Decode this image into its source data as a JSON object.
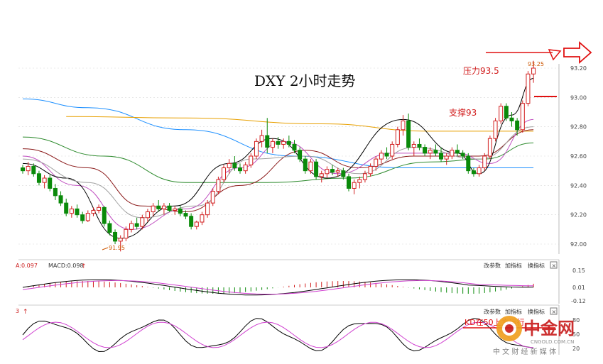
{
  "chart_data": {
    "type": "candlestick",
    "title": "DXY 2小时走势",
    "yaxis": {
      "ticks": [
        "93.20",
        "93.00",
        "92.80",
        "92.60",
        "92.40",
        "92.20",
        "92.00"
      ],
      "range": [
        91.92,
        93.3
      ]
    },
    "candles": [
      [
        92.52,
        92.54,
        92.48,
        92.5
      ],
      [
        92.5,
        92.56,
        92.47,
        92.53
      ],
      [
        92.53,
        92.55,
        92.46,
        92.48
      ],
      [
        92.48,
        92.5,
        92.4,
        92.42
      ],
      [
        92.42,
        92.47,
        92.38,
        92.45
      ],
      [
        92.45,
        92.47,
        92.36,
        92.38
      ],
      [
        92.38,
        92.41,
        92.3,
        92.33
      ],
      [
        92.33,
        92.36,
        92.26,
        92.28
      ],
      [
        92.28,
        92.31,
        92.19,
        92.21
      ],
      [
        92.21,
        92.26,
        92.18,
        92.24
      ],
      [
        92.24,
        92.27,
        92.18,
        92.2
      ],
      [
        92.2,
        92.22,
        92.14,
        92.16
      ],
      [
        92.16,
        92.23,
        92.15,
        92.21
      ],
      [
        92.21,
        92.25,
        92.19,
        92.23
      ],
      [
        92.23,
        92.27,
        92.21,
        92.25
      ],
      [
        92.25,
        92.26,
        92.12,
        92.14
      ],
      [
        92.14,
        92.16,
        92.06,
        92.08
      ],
      [
        92.08,
        92.1,
        92.0,
        92.02
      ],
      [
        92.02,
        92.06,
        91.95,
        92.04
      ],
      [
        92.04,
        92.12,
        92.02,
        92.1
      ],
      [
        92.1,
        92.16,
        92.08,
        92.14
      ],
      [
        92.14,
        92.18,
        92.1,
        92.12
      ],
      [
        92.12,
        92.2,
        92.1,
        92.18
      ],
      [
        92.18,
        92.24,
        92.15,
        92.22
      ],
      [
        92.22,
        92.28,
        92.19,
        92.26
      ],
      [
        92.26,
        92.3,
        92.22,
        92.24
      ],
      [
        92.24,
        92.28,
        92.2,
        92.26
      ],
      [
        92.26,
        92.28,
        92.22,
        92.23
      ],
      [
        92.23,
        92.26,
        92.2,
        92.24
      ],
      [
        92.24,
        92.26,
        92.19,
        92.21
      ],
      [
        92.21,
        92.23,
        92.17,
        92.19
      ],
      [
        92.19,
        92.21,
        92.1,
        92.12
      ],
      [
        92.12,
        92.16,
        92.1,
        92.15
      ],
      [
        92.15,
        92.22,
        92.13,
        92.2
      ],
      [
        92.2,
        92.3,
        92.18,
        92.28
      ],
      [
        92.28,
        92.38,
        92.26,
        92.36
      ],
      [
        92.36,
        92.46,
        92.34,
        92.44
      ],
      [
        92.44,
        92.54,
        92.42,
        92.52
      ],
      [
        92.52,
        92.58,
        92.48,
        92.55
      ],
      [
        92.55,
        92.6,
        92.5,
        92.52
      ],
      [
        92.52,
        92.55,
        92.48,
        92.5
      ],
      [
        92.5,
        92.56,
        92.48,
        92.54
      ],
      [
        92.54,
        92.62,
        92.52,
        92.6
      ],
      [
        92.6,
        92.72,
        92.58,
        92.7
      ],
      [
        92.7,
        92.78,
        92.66,
        92.74
      ],
      [
        92.74,
        92.86,
        92.62,
        92.66
      ],
      [
        92.66,
        92.72,
        92.62,
        92.7
      ],
      [
        92.7,
        92.73,
        92.65,
        92.68
      ],
      [
        92.68,
        92.72,
        92.65,
        92.7
      ],
      [
        92.7,
        92.74,
        92.66,
        92.68
      ],
      [
        92.68,
        92.71,
        92.62,
        92.64
      ],
      [
        92.64,
        92.66,
        92.56,
        92.58
      ],
      [
        92.58,
        92.6,
        92.48,
        92.5
      ],
      [
        92.5,
        92.58,
        92.48,
        92.56
      ],
      [
        92.56,
        92.58,
        92.44,
        92.46
      ],
      [
        92.46,
        92.5,
        92.42,
        92.48
      ],
      [
        92.48,
        92.53,
        92.45,
        92.51
      ],
      [
        92.51,
        92.54,
        92.47,
        92.49
      ],
      [
        92.49,
        92.52,
        92.46,
        92.5
      ],
      [
        92.5,
        92.52,
        92.44,
        92.46
      ],
      [
        92.46,
        92.48,
        92.36,
        92.38
      ],
      [
        92.38,
        92.44,
        92.34,
        92.42
      ],
      [
        92.42,
        92.46,
        92.38,
        92.44
      ],
      [
        92.44,
        92.5,
        92.42,
        92.48
      ],
      [
        92.48,
        92.55,
        92.46,
        92.53
      ],
      [
        92.53,
        92.6,
        92.5,
        92.58
      ],
      [
        92.58,
        92.64,
        92.55,
        92.62
      ],
      [
        92.62,
        92.66,
        92.58,
        92.6
      ],
      [
        92.6,
        92.7,
        92.58,
        92.68
      ],
      [
        92.68,
        92.8,
        92.66,
        92.78
      ],
      [
        92.78,
        92.88,
        92.74,
        92.84
      ],
      [
        92.84,
        92.89,
        92.64,
        92.66
      ],
      [
        92.66,
        92.7,
        92.6,
        92.68
      ],
      [
        92.68,
        92.72,
        92.64,
        92.66
      ],
      [
        92.66,
        92.68,
        92.6,
        92.62
      ],
      [
        92.62,
        92.66,
        92.58,
        92.64
      ],
      [
        92.64,
        92.68,
        92.6,
        92.62
      ],
      [
        92.62,
        92.66,
        92.56,
        92.58
      ],
      [
        92.58,
        92.62,
        92.54,
        92.6
      ],
      [
        92.6,
        92.66,
        92.58,
        92.64
      ],
      [
        92.64,
        92.68,
        92.6,
        92.62
      ],
      [
        92.62,
        92.64,
        92.58,
        92.6
      ],
      [
        92.6,
        92.62,
        92.48,
        92.5
      ],
      [
        92.5,
        92.52,
        92.46,
        92.48
      ],
      [
        92.48,
        92.54,
        92.46,
        92.52
      ],
      [
        92.52,
        92.62,
        92.5,
        92.6
      ],
      [
        92.6,
        92.74,
        92.58,
        92.72
      ],
      [
        92.72,
        92.86,
        92.7,
        92.84
      ],
      [
        92.84,
        92.96,
        92.82,
        92.94
      ],
      [
        92.94,
        92.96,
        92.84,
        92.86
      ],
      [
        92.86,
        92.9,
        92.8,
        92.84
      ],
      [
        92.84,
        92.86,
        92.74,
        92.78
      ],
      [
        92.78,
        92.98,
        92.76,
        92.96
      ],
      [
        92.96,
        93.18,
        92.94,
        93.16
      ],
      [
        93.16,
        93.25,
        93.1,
        93.2
      ]
    ],
    "moving_averages": [
      {
        "color": "#1e90ff",
        "values": [
          [
            0,
            92.99
          ],
          [
            12,
            92.93
          ],
          [
            30,
            92.78
          ],
          [
            50,
            92.6
          ],
          [
            70,
            92.52
          ],
          [
            94,
            92.52
          ]
        ]
      },
      {
        "color": "#e8a000",
        "values": [
          [
            8,
            92.87
          ],
          [
            30,
            92.86
          ],
          [
            55,
            92.82
          ],
          [
            75,
            92.77
          ],
          [
            94,
            92.77
          ]
        ]
      },
      {
        "color": "#2e8b2e",
        "values": [
          [
            0,
            92.73
          ],
          [
            15,
            92.6
          ],
          [
            30,
            92.42
          ],
          [
            45,
            92.42
          ],
          [
            60,
            92.45
          ],
          [
            75,
            92.56
          ],
          [
            85,
            92.58
          ],
          [
            94,
            92.69
          ]
        ]
      },
      {
        "color": "#8b1a1a",
        "values": [
          [
            0,
            92.65
          ],
          [
            12,
            92.52
          ],
          [
            22,
            92.26
          ],
          [
            30,
            92.22
          ],
          [
            40,
            92.4
          ],
          [
            52,
            92.64
          ],
          [
            62,
            92.52
          ],
          [
            72,
            92.6
          ],
          [
            84,
            92.6
          ],
          [
            94,
            92.78
          ]
        ]
      },
      {
        "color": "#c050c0",
        "values": [
          [
            0,
            92.6
          ],
          [
            10,
            92.4
          ],
          [
            20,
            92.1
          ],
          [
            30,
            92.24
          ],
          [
            40,
            92.52
          ],
          [
            48,
            92.7
          ],
          [
            58,
            92.48
          ],
          [
            68,
            92.62
          ],
          [
            80,
            92.62
          ],
          [
            86,
            92.55
          ],
          [
            94,
            92.85
          ]
        ]
      },
      {
        "color": "#000000",
        "values": [
          [
            0,
            92.55
          ],
          [
            8,
            92.45
          ],
          [
            18,
            92.04
          ],
          [
            28,
            92.26
          ],
          [
            38,
            92.55
          ],
          [
            46,
            92.72
          ],
          [
            56,
            92.45
          ],
          [
            70,
            92.85
          ],
          [
            80,
            92.62
          ],
          [
            84,
            92.48
          ],
          [
            90,
            92.88
          ],
          [
            94,
            93.13
          ]
        ]
      },
      {
        "color": "#a0a0a0",
        "values": [
          [
            0,
            92.58
          ],
          [
            12,
            92.42
          ],
          [
            22,
            92.18
          ],
          [
            32,
            92.26
          ],
          [
            42,
            92.58
          ],
          [
            52,
            92.6
          ],
          [
            62,
            92.48
          ],
          [
            72,
            92.66
          ],
          [
            84,
            92.58
          ],
          [
            94,
            92.8
          ]
        ]
      }
    ],
    "annotations": {
      "high_label": "93.25",
      "low_label": "91.95",
      "resistance_label": "压力93.5",
      "support_label": "支撑93"
    },
    "macd": {
      "header_left": "A:0.097",
      "header_value": "MACD:0.098",
      "ticks": [
        "0.15",
        "0.01",
        "-0.12"
      ],
      "toolbar": [
        "改参数",
        "加指标",
        "换指标"
      ]
    },
    "kd": {
      "header_left": "3",
      "ticks": [
        "80",
        "50",
        "20"
      ],
      "toolbar": [
        "改参数",
        "加指标",
        "换指标"
      ],
      "annotation": "KD在50上方运行"
    }
  },
  "colors": {
    "up": "#d21e1e",
    "down": "#0a8a0a",
    "accent": "#e01010",
    "grid": "#d8d8d8"
  },
  "watermark": {
    "brand": "中金网",
    "url": "CNGOLD.COM.CN",
    "tagline": "中 文 财 经 新 媒 体"
  }
}
